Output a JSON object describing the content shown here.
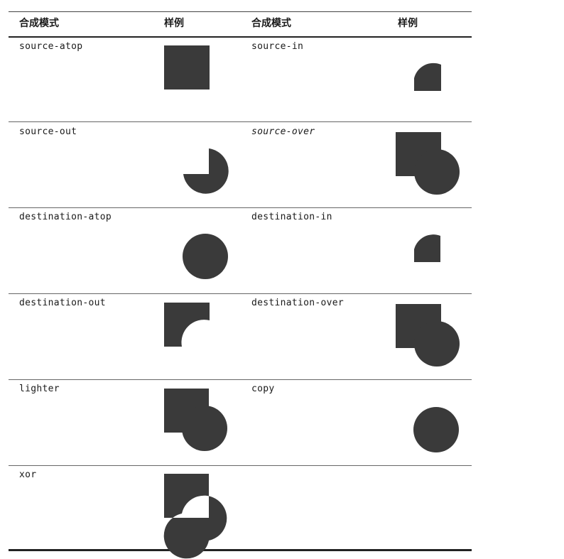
{
  "header": {
    "col1_mode": "合成模式",
    "col1_sample": "样例",
    "col2_mode": "合成模式",
    "col2_sample": "样例"
  },
  "modes": {
    "source_atop": "source-atop",
    "source_in": "source-in",
    "source_out": "source-out",
    "source_over": "source-over",
    "destination_atop": "destination-atop",
    "destination_in": "destination-in",
    "destination_out": "destination-out",
    "destination_over": "destination-over",
    "lighter": "lighter",
    "copy": "copy",
    "xor": "xor"
  },
  "colors": {
    "ink": "#3a3a3a",
    "rule": "#444444"
  }
}
